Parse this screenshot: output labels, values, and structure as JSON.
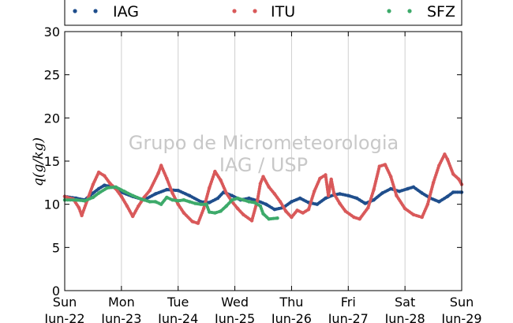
{
  "chart_data": {
    "type": "scatter",
    "xlabel": "",
    "ylabel": "q(g/kg)",
    "ylim": [
      0,
      30
    ],
    "yticks": [
      0,
      5,
      10,
      15,
      20,
      25,
      30
    ],
    "xlim": [
      0,
      7
    ],
    "xticks": [
      {
        "x": 0,
        "day": "Sun",
        "date": "Jun-22"
      },
      {
        "x": 1,
        "day": "Mon",
        "date": "Jun-23"
      },
      {
        "x": 2,
        "day": "Tue",
        "date": "Jun-24"
      },
      {
        "x": 3,
        "day": "Wed",
        "date": "Jun-25"
      },
      {
        "x": 4,
        "day": "Thu",
        "date": "Jun-26"
      },
      {
        "x": 5,
        "day": "Fri",
        "date": "Jun-27"
      },
      {
        "x": 6,
        "day": "Sat",
        "date": "Jun-28"
      },
      {
        "x": 7,
        "day": "Sun",
        "date": "Jun-29"
      }
    ],
    "grid": "vertical",
    "legend_position": "top",
    "watermark": [
      "Grupo de Micrometeorologia",
      "IAG / USP"
    ],
    "series": [
      {
        "name": "IAG",
        "color": "#1f4e8c",
        "points": [
          [
            0.0,
            10.9
          ],
          [
            0.2,
            10.7
          ],
          [
            0.35,
            10.5
          ],
          [
            0.5,
            11.3
          ],
          [
            0.6,
            11.8
          ],
          [
            0.7,
            12.2
          ],
          [
            0.85,
            12.0
          ],
          [
            1.0,
            11.4
          ],
          [
            1.2,
            10.9
          ],
          [
            1.4,
            10.5
          ],
          [
            1.6,
            11.2
          ],
          [
            1.8,
            11.7
          ],
          [
            2.0,
            11.6
          ],
          [
            2.2,
            11.0
          ],
          [
            2.4,
            10.3
          ],
          [
            2.55,
            10.2
          ],
          [
            2.7,
            10.7
          ],
          [
            2.8,
            11.4
          ],
          [
            2.95,
            11.0
          ],
          [
            3.1,
            10.5
          ],
          [
            3.25,
            10.7
          ],
          [
            3.4,
            10.4
          ],
          [
            3.55,
            10.0
          ],
          [
            3.7,
            9.4
          ],
          [
            3.85,
            9.6
          ],
          [
            4.0,
            10.3
          ],
          [
            4.15,
            10.7
          ],
          [
            4.3,
            10.2
          ],
          [
            4.45,
            10.0
          ],
          [
            4.6,
            10.7
          ],
          [
            4.75,
            11.1
          ],
          [
            4.85,
            11.2
          ],
          [
            5.0,
            11.0
          ],
          [
            5.15,
            10.7
          ],
          [
            5.3,
            10.1
          ],
          [
            5.45,
            10.5
          ],
          [
            5.6,
            11.3
          ],
          [
            5.75,
            11.8
          ],
          [
            5.9,
            11.5
          ],
          [
            6.05,
            11.8
          ],
          [
            6.15,
            12.0
          ],
          [
            6.3,
            11.3
          ],
          [
            6.45,
            10.7
          ],
          [
            6.6,
            10.3
          ],
          [
            6.75,
            10.9
          ],
          [
            6.85,
            11.4
          ],
          [
            7.0,
            11.4
          ]
        ]
      },
      {
        "name": "ITU",
        "color": "#d9595a",
        "points": [
          [
            0.0,
            10.9
          ],
          [
            0.15,
            10.6
          ],
          [
            0.25,
            9.6
          ],
          [
            0.3,
            8.7
          ],
          [
            0.4,
            10.5
          ],
          [
            0.5,
            12.3
          ],
          [
            0.6,
            13.7
          ],
          [
            0.7,
            13.3
          ],
          [
            0.8,
            12.4
          ],
          [
            0.9,
            11.8
          ],
          [
            1.0,
            10.9
          ],
          [
            1.1,
            9.8
          ],
          [
            1.2,
            8.6
          ],
          [
            1.3,
            9.8
          ],
          [
            1.4,
            10.8
          ],
          [
            1.5,
            11.6
          ],
          [
            1.65,
            13.6
          ],
          [
            1.7,
            14.5
          ],
          [
            1.8,
            13.0
          ],
          [
            1.9,
            11.3
          ],
          [
            2.0,
            10.0
          ],
          [
            2.1,
            9.0
          ],
          [
            2.25,
            8.0
          ],
          [
            2.35,
            7.8
          ],
          [
            2.45,
            9.5
          ],
          [
            2.55,
            11.9
          ],
          [
            2.65,
            13.8
          ],
          [
            2.75,
            12.8
          ],
          [
            2.85,
            11.3
          ],
          [
            2.95,
            10.3
          ],
          [
            3.05,
            9.5
          ],
          [
            3.15,
            8.8
          ],
          [
            3.3,
            8.1
          ],
          [
            3.4,
            10.5
          ],
          [
            3.45,
            12.4
          ],
          [
            3.5,
            13.2
          ],
          [
            3.6,
            12.0
          ],
          [
            3.7,
            11.2
          ],
          [
            3.8,
            10.3
          ],
          [
            3.9,
            9.2
          ],
          [
            4.0,
            8.5
          ],
          [
            4.1,
            9.3
          ],
          [
            4.2,
            9.0
          ],
          [
            4.3,
            9.4
          ],
          [
            4.4,
            11.5
          ],
          [
            4.5,
            13.0
          ],
          [
            4.6,
            13.4
          ],
          [
            4.65,
            11.0
          ],
          [
            4.7,
            12.9
          ],
          [
            4.75,
            11.2
          ],
          [
            4.85,
            10.1
          ],
          [
            4.95,
            9.2
          ],
          [
            5.1,
            8.5
          ],
          [
            5.2,
            8.3
          ],
          [
            5.35,
            9.6
          ],
          [
            5.45,
            11.7
          ],
          [
            5.55,
            14.4
          ],
          [
            5.65,
            14.6
          ],
          [
            5.75,
            13.2
          ],
          [
            5.85,
            11.0
          ],
          [
            6.0,
            9.5
          ],
          [
            6.15,
            8.8
          ],
          [
            6.3,
            8.5
          ],
          [
            6.4,
            10.0
          ],
          [
            6.5,
            12.5
          ],
          [
            6.6,
            14.5
          ],
          [
            6.7,
            15.8
          ],
          [
            6.75,
            15.2
          ],
          [
            6.85,
            13.5
          ],
          [
            6.95,
            12.9
          ],
          [
            7.0,
            12.3
          ]
        ]
      },
      {
        "name": "SFZ",
        "color": "#3daa6a",
        "points": [
          [
            0.0,
            10.5
          ],
          [
            0.2,
            10.5
          ],
          [
            0.35,
            10.4
          ],
          [
            0.5,
            10.8
          ],
          [
            0.6,
            11.3
          ],
          [
            0.75,
            11.9
          ],
          [
            0.9,
            12.0
          ],
          [
            1.05,
            11.5
          ],
          [
            1.2,
            11.0
          ],
          [
            1.35,
            10.6
          ],
          [
            1.5,
            10.3
          ],
          [
            1.6,
            10.3
          ],
          [
            1.7,
            10.0
          ],
          [
            1.8,
            10.8
          ],
          [
            1.9,
            10.5
          ],
          [
            2.0,
            10.4
          ],
          [
            2.1,
            10.5
          ],
          [
            2.2,
            10.3
          ],
          [
            2.3,
            10.1
          ],
          [
            2.4,
            10.0
          ],
          [
            2.5,
            10.0
          ],
          [
            2.55,
            9.1
          ],
          [
            2.65,
            9.0
          ],
          [
            2.75,
            9.2
          ],
          [
            2.85,
            9.8
          ],
          [
            2.95,
            10.5
          ],
          [
            3.05,
            10.7
          ],
          [
            3.15,
            10.5
          ],
          [
            3.25,
            10.3
          ],
          [
            3.35,
            10.2
          ],
          [
            3.45,
            9.8
          ],
          [
            3.5,
            8.9
          ],
          [
            3.6,
            8.3
          ],
          [
            3.75,
            8.4
          ]
        ]
      }
    ]
  }
}
